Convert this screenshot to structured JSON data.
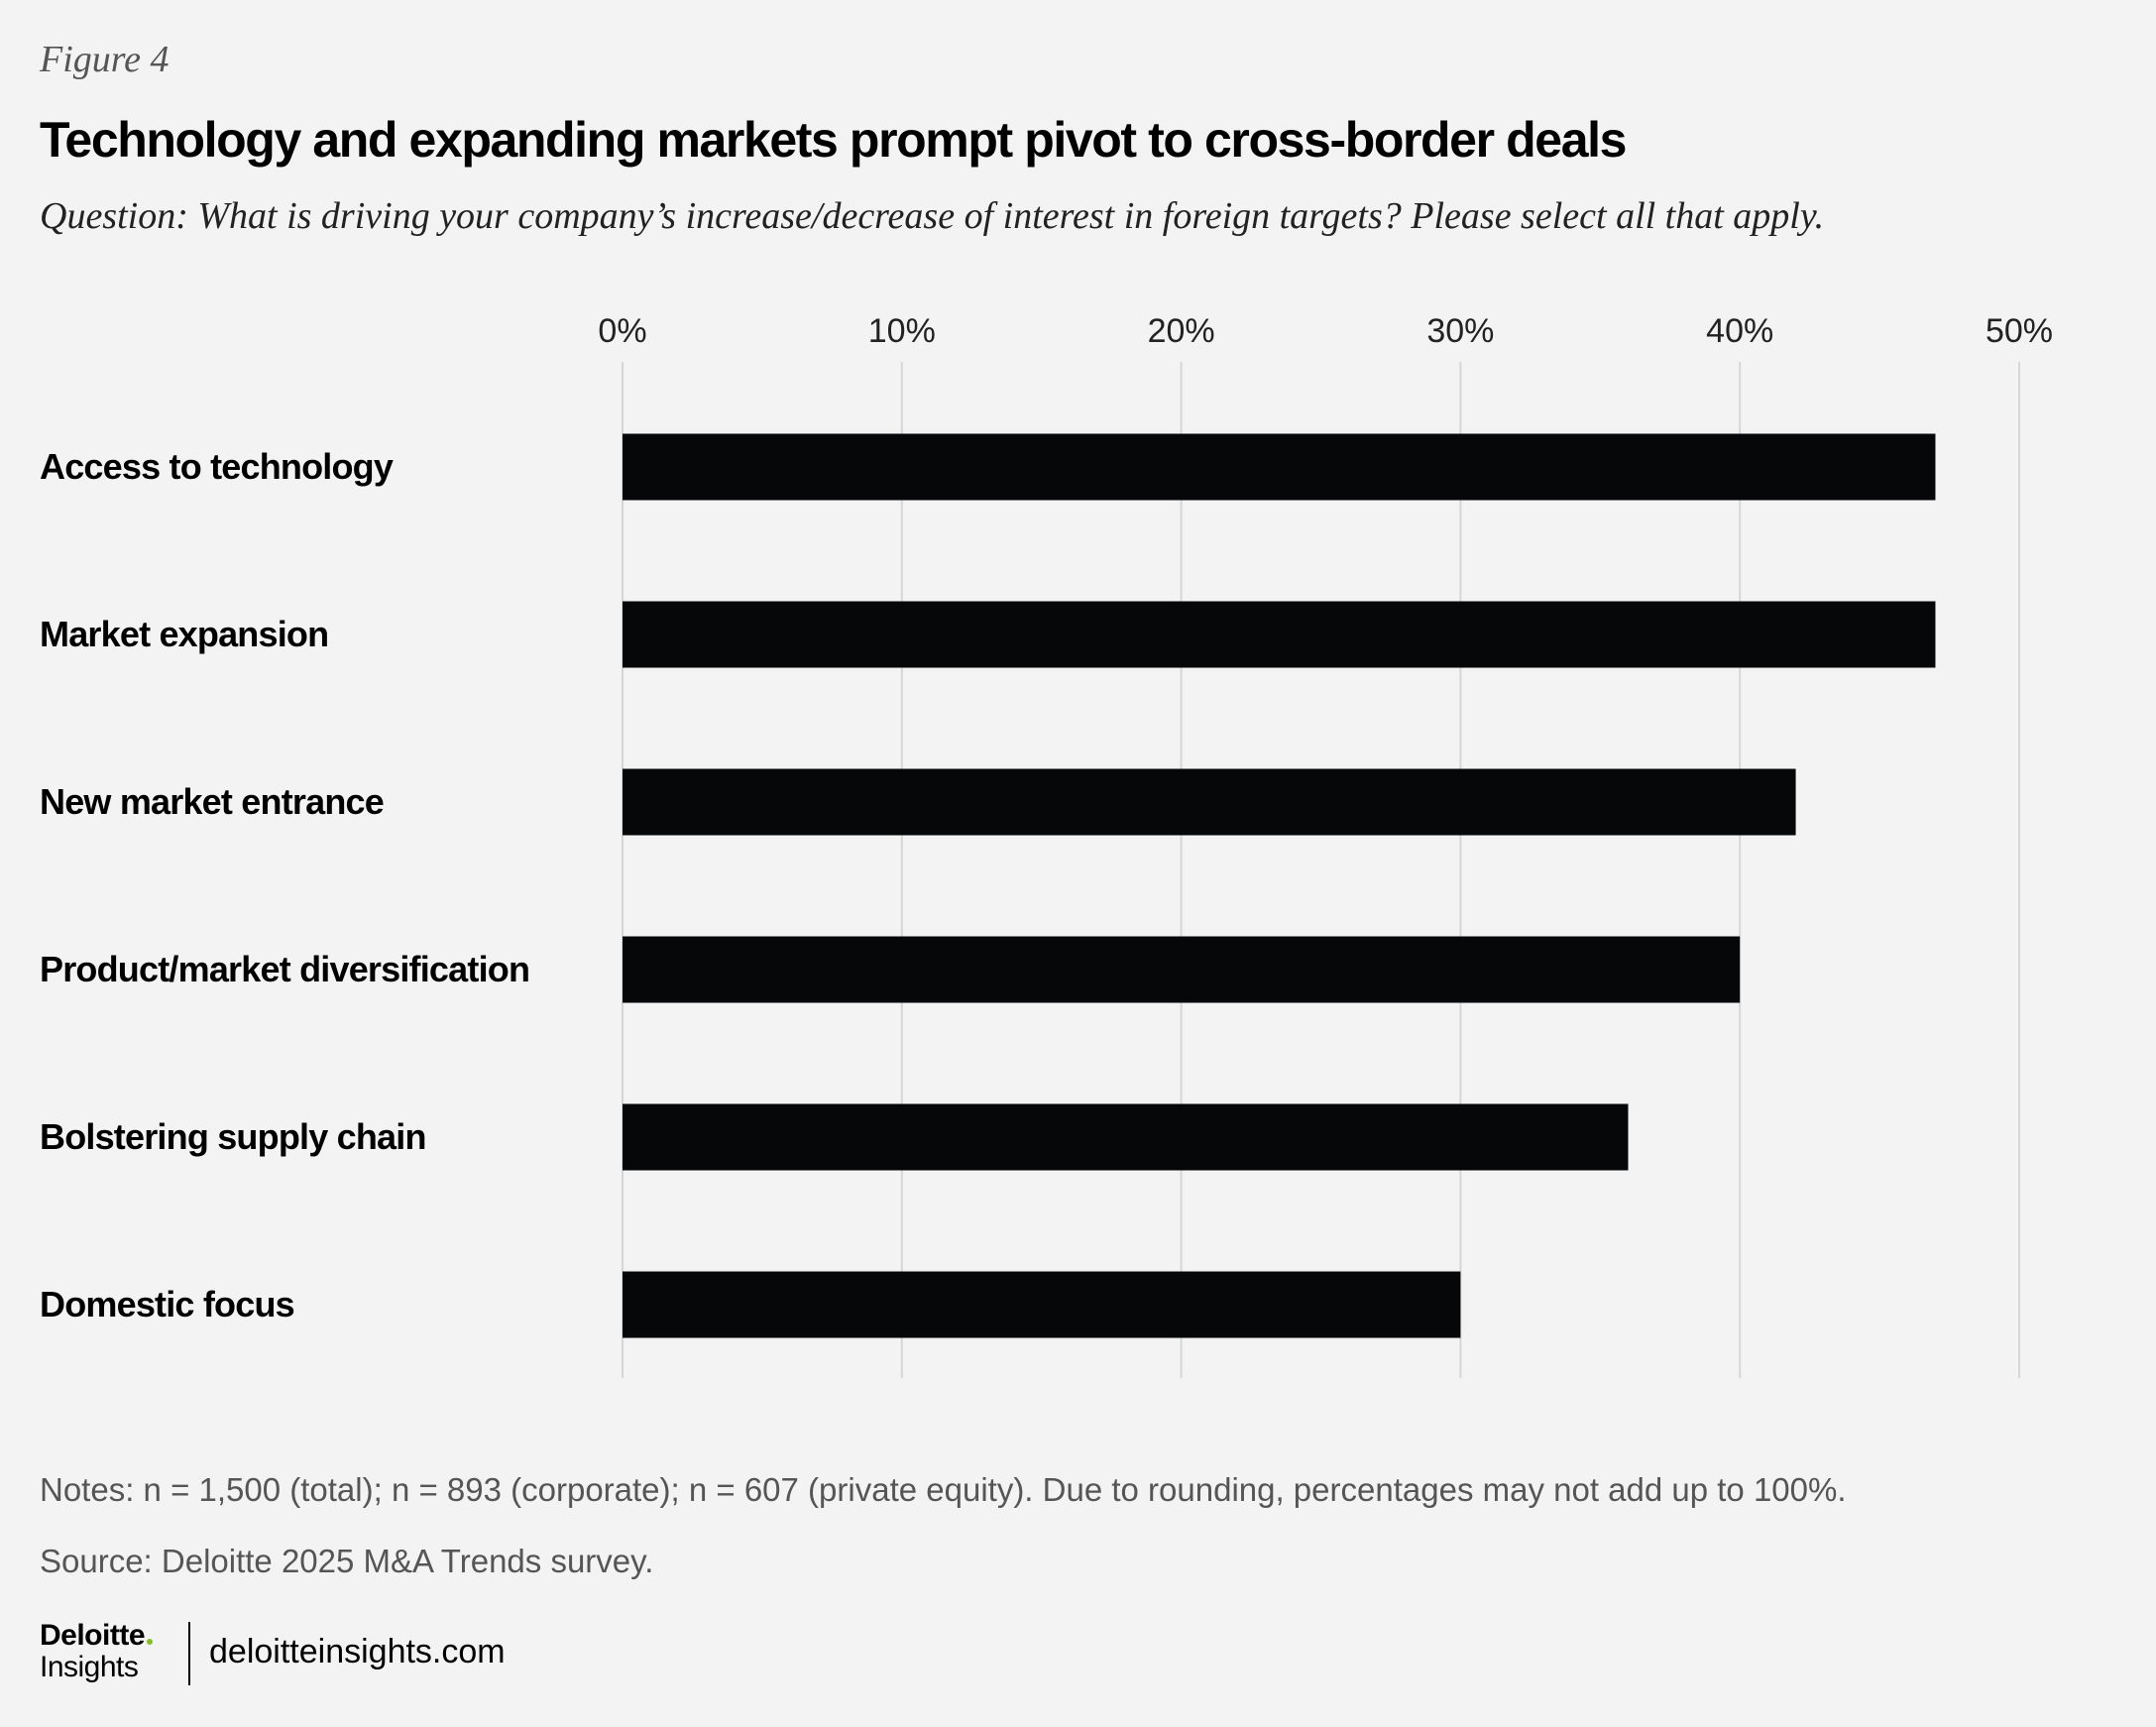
{
  "header": {
    "figure_label": "Figure 4",
    "title": "Technology and expanding markets prompt pivot to cross-border deals",
    "question": "Question: What is driving your company’s increase/decrease of interest in foreign targets? Please select all that apply."
  },
  "chart_data": {
    "type": "bar",
    "orientation": "horizontal",
    "title": "Technology and expanding markets prompt pivot to cross-border deals",
    "xlabel": "",
    "ylabel": "",
    "xlim": [
      0,
      50
    ],
    "x_ticks": [
      0,
      10,
      20,
      30,
      40,
      50
    ],
    "x_tick_labels": [
      "0%",
      "10%",
      "20%",
      "30%",
      "40%",
      "50%"
    ],
    "grid": true,
    "categories": [
      "Access to technology",
      "Market expansion",
      "New market entrance",
      "Product/market diversification",
      "Bolstering supply chain",
      "Domestic focus"
    ],
    "values": [
      47,
      47,
      42,
      40,
      36,
      30
    ],
    "bar_color": "#050708",
    "grid_color": "#d6d6d6"
  },
  "footer": {
    "notes": "Notes: n = 1,500 (total); n = 893 (corporate); n = 607 (private equity). Due to rounding, percentages may not add up to 100%.",
    "source": "Source: Deloitte 2025 M&A Trends survey.",
    "logo_brand": "Deloitte",
    "logo_sub": "Insights",
    "website": "deloitteinsights.com"
  }
}
